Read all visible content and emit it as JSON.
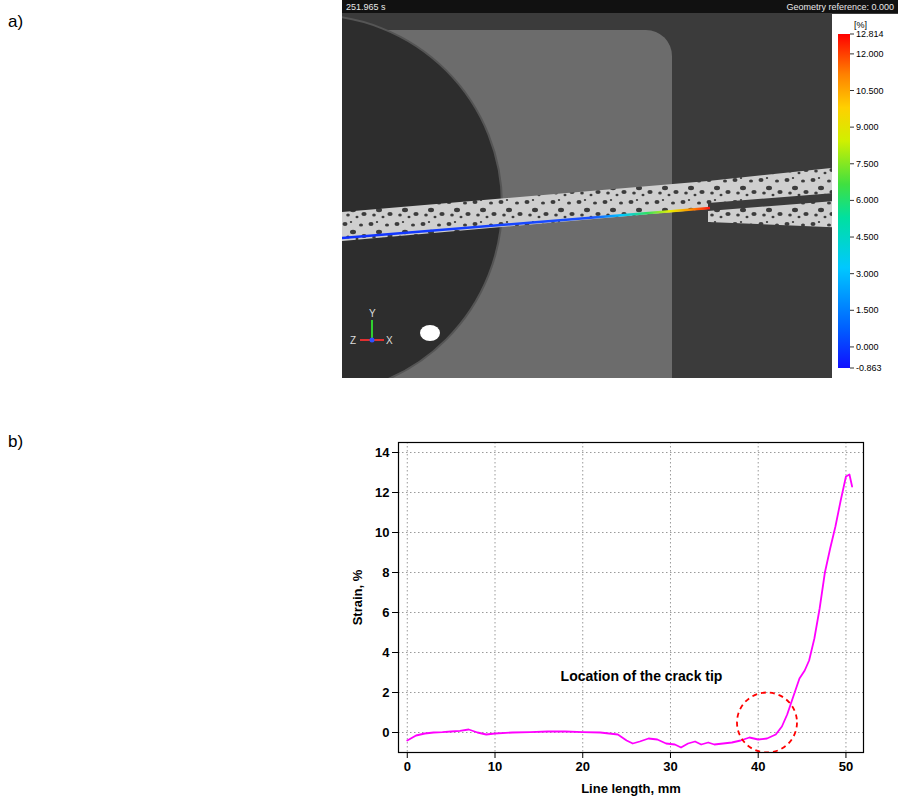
{
  "chart_data": [
    {
      "type": "image",
      "panel": "a)",
      "timestamp": "251.965 s",
      "reference": "Geometry reference: 0.000",
      "axes": [
        "Y",
        "Z",
        "X"
      ],
      "colorbar": {
        "label": "[%]",
        "range": [
          -0.863,
          12.814
        ],
        "ticks": [
          12.814,
          {
            "value": 12,
            "label": "12.000"
          },
          {
            "value": 10.5,
            "label": "10.500"
          },
          {
            "value": 9,
            "label": "9.000"
          },
          {
            "value": 7.5,
            "label": "7.500"
          },
          {
            "value": 6,
            "label": "6.000"
          },
          {
            "value": 4.5,
            "label": "4.500"
          },
          {
            "value": 3,
            "label": "3.000"
          },
          {
            "value": 1.5,
            "label": "1.500"
          },
          {
            "value": 0,
            "label": "0.000"
          },
          -0.863
        ]
      }
    },
    {
      "type": "line",
      "panel": "b)",
      "x_label": "Line length, mm",
      "y_label": "Strain, %",
      "x": [
        0,
        1,
        2,
        3,
        4,
        5,
        6,
        7,
        8,
        9,
        10,
        12,
        14,
        16,
        18,
        20,
        22,
        23,
        24,
        25,
        25.7,
        26.5,
        27.5,
        28.5,
        29.5,
        30.5,
        31.2,
        32,
        32.8,
        33.5,
        34.3,
        35,
        36,
        37,
        38,
        39,
        40,
        41,
        42,
        42.7,
        43.3,
        44,
        44.7,
        45.3,
        45.8,
        46.4,
        47,
        47.6,
        48.2,
        48.8,
        49.4,
        50,
        50.4,
        50.7
      ],
      "values": [
        -0.4,
        -0.15,
        -0.05,
        0,
        0.02,
        0.05,
        0.08,
        0.15,
        0,
        -0.1,
        -0.05,
        0,
        0.02,
        0.05,
        0.05,
        0.02,
        0,
        -0.05,
        -0.1,
        -0.4,
        -0.55,
        -0.45,
        -0.3,
        -0.35,
        -0.55,
        -0.6,
        -0.75,
        -0.55,
        -0.45,
        -0.6,
        -0.5,
        -0.6,
        -0.55,
        -0.5,
        -0.4,
        -0.25,
        -0.35,
        -0.3,
        -0.1,
        0.3,
        0.9,
        1.8,
        2.7,
        3.1,
        3.6,
        4.7,
        6.2,
        8.0,
        9.2,
        10.3,
        11.6,
        12.8,
        12.9,
        12.3
      ],
      "color": "#ff00ff",
      "xlim": [
        -1,
        52
      ],
      "xticks": [
        0,
        10,
        20,
        30,
        40,
        50
      ],
      "ylim": [
        -1,
        14.5
      ],
      "yticks": [
        0,
        2,
        4,
        6,
        8,
        10,
        12,
        14
      ],
      "grid": true,
      "annotations": [
        {
          "text": "Location of the crack tip",
          "x": 26.7,
          "y": 2.8,
          "target": [
            41,
            0.5
          ],
          "color": "#ff0000"
        }
      ]
    }
  ]
}
